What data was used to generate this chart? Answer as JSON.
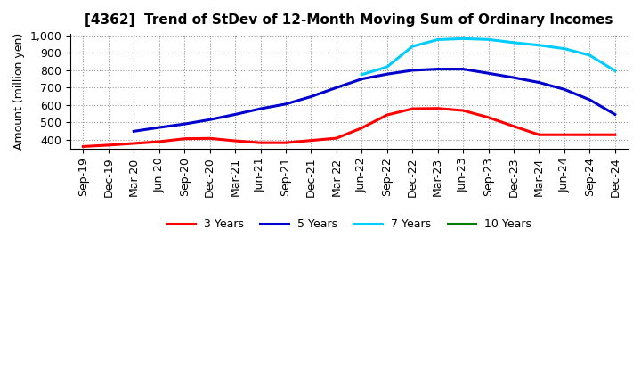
{
  "title": "[4362]  Trend of StDev of 12-Month Moving Sum of Ordinary Incomes",
  "ylabel": "Amount (million yen)",
  "ylim": [
    348,
    1010
  ],
  "yticks": [
    400,
    500,
    600,
    700,
    800,
    900,
    1000
  ],
  "ytick_labels": [
    "400",
    "500",
    "600",
    "700",
    "800",
    "900",
    "1,000"
  ],
  "x_labels": [
    "Sep-19",
    "Dec-19",
    "Mar-20",
    "Jun-20",
    "Sep-20",
    "Dec-20",
    "Mar-21",
    "Jun-21",
    "Sep-21",
    "Dec-21",
    "Mar-22",
    "Jun-22",
    "Sep-22",
    "Dec-22",
    "Mar-23",
    "Jun-23",
    "Sep-23",
    "Dec-23",
    "Mar-24",
    "Jun-24",
    "Sep-24",
    "Dec-24"
  ],
  "series_3y": [
    360,
    368,
    378,
    388,
    405,
    407,
    393,
    382,
    382,
    395,
    408,
    467,
    542,
    578,
    580,
    568,
    528,
    477,
    428,
    428,
    428,
    428
  ],
  "series_5y": [
    null,
    null,
    448,
    470,
    490,
    515,
    545,
    578,
    605,
    648,
    700,
    750,
    778,
    800,
    807,
    807,
    783,
    758,
    730,
    690,
    630,
    545
  ],
  "series_7y": [
    null,
    null,
    null,
    null,
    null,
    null,
    null,
    null,
    null,
    null,
    null,
    775,
    820,
    938,
    977,
    983,
    978,
    960,
    945,
    925,
    887,
    797
  ],
  "series_10y": [
    null,
    null,
    null,
    null,
    null,
    null,
    null,
    null,
    null,
    null,
    null,
    null,
    null,
    null,
    null,
    null,
    null,
    null,
    null,
    null,
    null,
    null
  ],
  "color_3y": "#ff0000",
  "color_5y": "#0000cc",
  "color_7y": "#00ccff",
  "color_10y": "#008000",
  "background_color": "#ffffff",
  "grid_color": "#999999",
  "linewidth": 2.2,
  "title_fontsize": 11,
  "axis_fontsize": 9,
  "tick_fontsize": 9
}
